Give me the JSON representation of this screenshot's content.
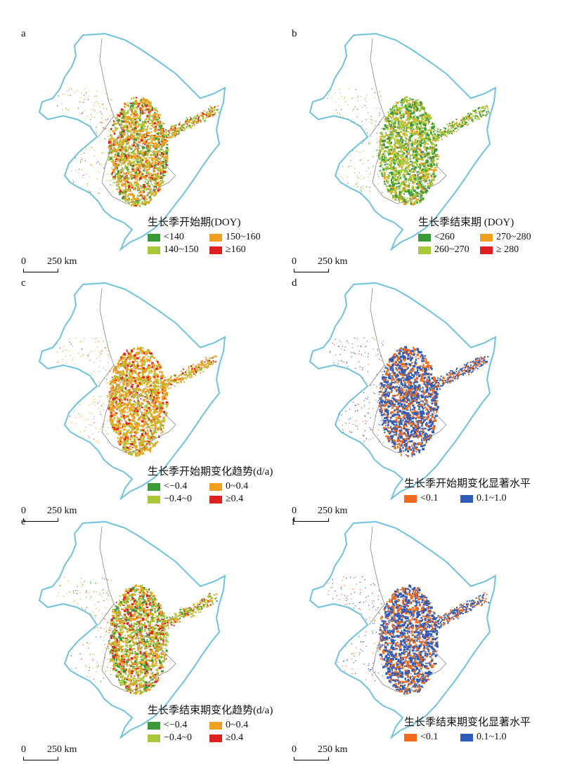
{
  "colors": {
    "dark_green": "#3a9a3a",
    "yellow_green": "#a8c838",
    "orange": "#f0a020",
    "red": "#e02020",
    "sig_orange": "#f06a1e",
    "sig_blue": "#2e5bb8",
    "coast": "#6fc3e0",
    "border": "#888888"
  },
  "panels": [
    {
      "letter": "a",
      "legend_title": "生长季开始期(DOY)",
      "items": [
        {
          "label": "<140",
          "color": "dark_green"
        },
        {
          "label": "150~160",
          "color": "orange"
        },
        {
          "label": "140~150",
          "color": "yellow_green"
        },
        {
          "label": "≥160",
          "color": "red"
        }
      ],
      "scale_zero": "0",
      "scale_label": "250 km",
      "palette": [
        "orange",
        "orange",
        "yellow_green",
        "orange",
        "yellow_green",
        "dark_green",
        "red"
      ]
    },
    {
      "letter": "b",
      "legend_title": "生长季结束期 (DOY)",
      "items": [
        {
          "label": "<260",
          "color": "dark_green"
        },
        {
          "label": "270~280",
          "color": "orange"
        },
        {
          "label": "260~270",
          "color": "yellow_green"
        },
        {
          "label": "≥ 280",
          "color": "red"
        }
      ],
      "scale_zero": "0",
      "scale_label": "250 km",
      "palette": [
        "yellow_green",
        "yellow_green",
        "dark_green",
        "yellow_green",
        "dark_green",
        "orange"
      ]
    },
    {
      "letter": "c",
      "legend_title": "生长季开始期变化趋势(d/a)",
      "items": [
        {
          "label": "<−0.4",
          "color": "dark_green"
        },
        {
          "label": "0~0.4",
          "color": "orange"
        },
        {
          "label": "−0.4~0",
          "color": "yellow_green"
        },
        {
          "label": "≥0.4",
          "color": "red"
        }
      ],
      "scale_zero": "0",
      "scale_label": "250 km",
      "palette": [
        "orange",
        "orange",
        "yellow_green",
        "orange",
        "red",
        "yellow_green",
        "orange"
      ]
    },
    {
      "letter": "d",
      "legend_title": "生长季开始期变化显著水平",
      "items": [
        {
          "label": "<0.1",
          "color": "sig_orange"
        },
        {
          "label": "0.1~1.0",
          "color": "sig_blue"
        }
      ],
      "scale_zero": "0",
      "scale_label": "250 km",
      "palette": [
        "sig_blue",
        "sig_orange",
        "sig_blue",
        "sig_orange",
        "sig_blue"
      ]
    },
    {
      "letter": "e",
      "legend_title": "生长季结束期变化趋势(d/a)",
      "items": [
        {
          "label": "<−0.4",
          "color": "dark_green"
        },
        {
          "label": "0~0.4",
          "color": "orange"
        },
        {
          "label": "−0.4~0",
          "color": "yellow_green"
        },
        {
          "label": "≥0.4",
          "color": "red"
        }
      ],
      "scale_zero": "0",
      "scale_label": "250 km",
      "palette": [
        "yellow_green",
        "orange",
        "yellow_green",
        "orange",
        "dark_green",
        "red"
      ]
    },
    {
      "letter": "f",
      "legend_title": "生长季结束期变化显著水平",
      "items": [
        {
          "label": "<0.1",
          "color": "sig_orange"
        },
        {
          "label": "0.1~1.0",
          "color": "sig_blue"
        }
      ],
      "scale_zero": "0",
      "scale_label": "250 km",
      "palette": [
        "sig_blue",
        "sig_blue",
        "sig_orange",
        "sig_blue",
        "sig_orange"
      ]
    }
  ]
}
